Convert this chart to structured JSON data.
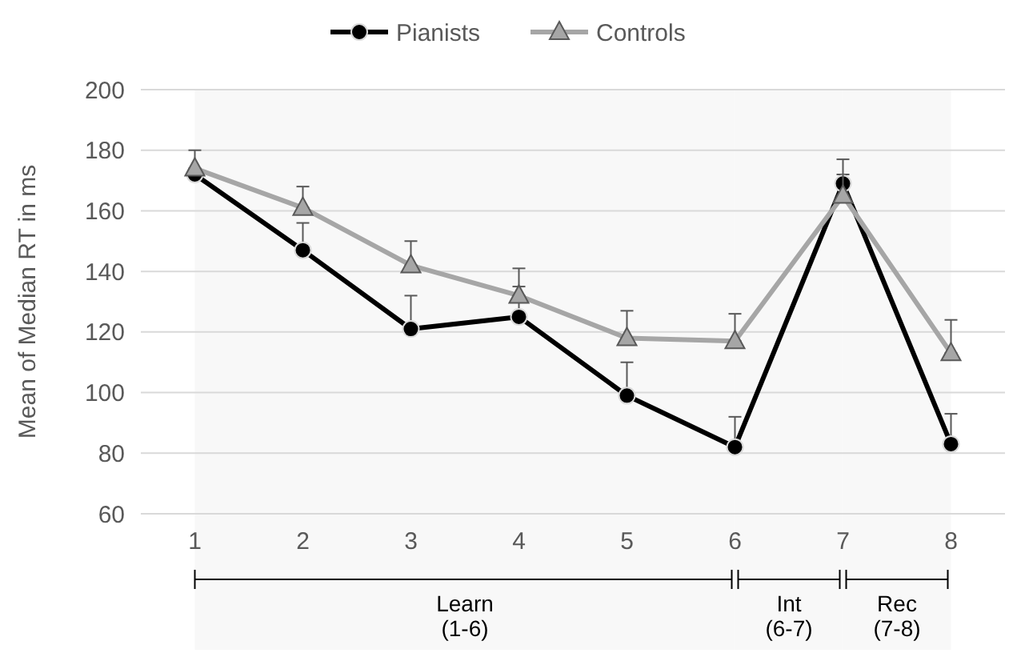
{
  "chart_data": {
    "type": "line",
    "ylabel": "Mean of Median RT in ms",
    "x": [
      1,
      2,
      3,
      4,
      5,
      6,
      7,
      8
    ],
    "xlim": [
      0.5,
      8.5
    ],
    "xticks": [
      1,
      2,
      3,
      4,
      5,
      6,
      7,
      8
    ],
    "ylim": [
      60,
      200
    ],
    "yticks": [
      60,
      80,
      100,
      120,
      140,
      160,
      180,
      200
    ],
    "grid": "y",
    "legend": "top",
    "line_style": "solid",
    "series": [
      {
        "name": "Pianists",
        "color": "#000000",
        "marker": "circle",
        "values": [
          172,
          147,
          121,
          125,
          99,
          82,
          169,
          83
        ],
        "errors": [
          null,
          [
            147,
            156
          ],
          [
            121,
            132
          ],
          [
            125,
            135
          ],
          [
            99,
            110
          ],
          [
            82,
            92
          ],
          [
            169,
            172
          ],
          [
            83,
            93
          ]
        ]
      },
      {
        "name": "Controls",
        "color": "#a6a6a6",
        "marker": "triangle",
        "values": [
          174,
          161,
          142,
          132,
          118,
          117,
          165,
          113
        ],
        "errors": [
          [
            174,
            180
          ],
          [
            161,
            168
          ],
          [
            142,
            150
          ],
          [
            132,
            141
          ],
          [
            118,
            127
          ],
          [
            117,
            126
          ],
          [
            165,
            177
          ],
          [
            113,
            124
          ]
        ]
      }
    ],
    "bands": [
      {
        "axis": "x",
        "from": 1,
        "to": 6,
        "label": "Learn (1-6)",
        "color": "#f8f8f8"
      },
      {
        "axis": "x",
        "from": 6,
        "to": 7,
        "label": "Int (6-7)",
        "color": "#f8f8f8"
      },
      {
        "axis": "x",
        "from": 7,
        "to": 8,
        "label": "Rec (7-8)",
        "color": "#f8f8f8"
      }
    ]
  }
}
